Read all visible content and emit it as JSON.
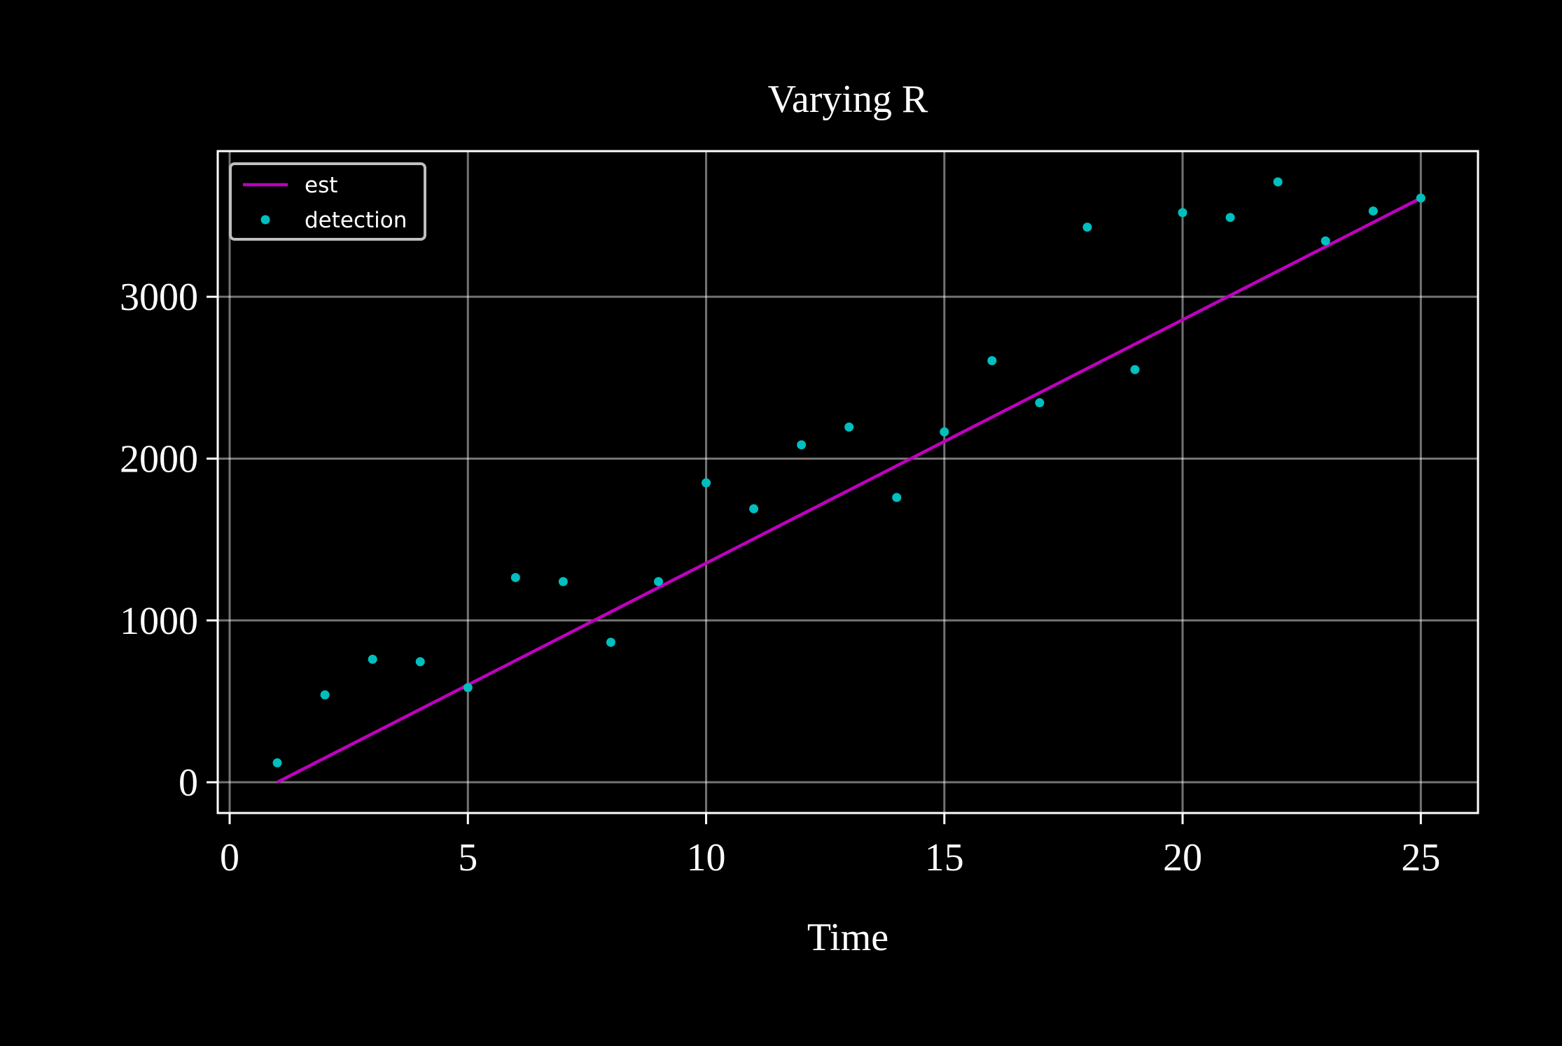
{
  "chart_data": {
    "type": "scatter",
    "title": "Varying R",
    "xlabel": "Time",
    "ylabel": "",
    "xlim": [
      -0.25,
      26.2
    ],
    "ylim": [
      -190,
      3900
    ],
    "xticks": [
      0,
      5,
      10,
      15,
      20,
      25
    ],
    "yticks": [
      0,
      1000,
      2000,
      3000
    ],
    "grid": true,
    "legend_position": "top-left",
    "series": [
      {
        "name": "est",
        "kind": "line",
        "color": "#bf00bf",
        "x": [
          1,
          25
        ],
        "y": [
          0,
          3610
        ]
      },
      {
        "name": "detection",
        "kind": "points",
        "color": "#00bfbf",
        "x": [
          1,
          2,
          3,
          4,
          5,
          6,
          7,
          8,
          9,
          10,
          11,
          12,
          13,
          14,
          15,
          16,
          17,
          18,
          19,
          20,
          21,
          22,
          23,
          24,
          25
        ],
        "y": [
          120,
          540,
          760,
          745,
          585,
          1265,
          1240,
          865,
          1240,
          1850,
          1690,
          2085,
          2195,
          1760,
          2165,
          2605,
          2345,
          3430,
          2550,
          3520,
          3490,
          3710,
          3345,
          3530,
          3610
        ]
      }
    ]
  }
}
